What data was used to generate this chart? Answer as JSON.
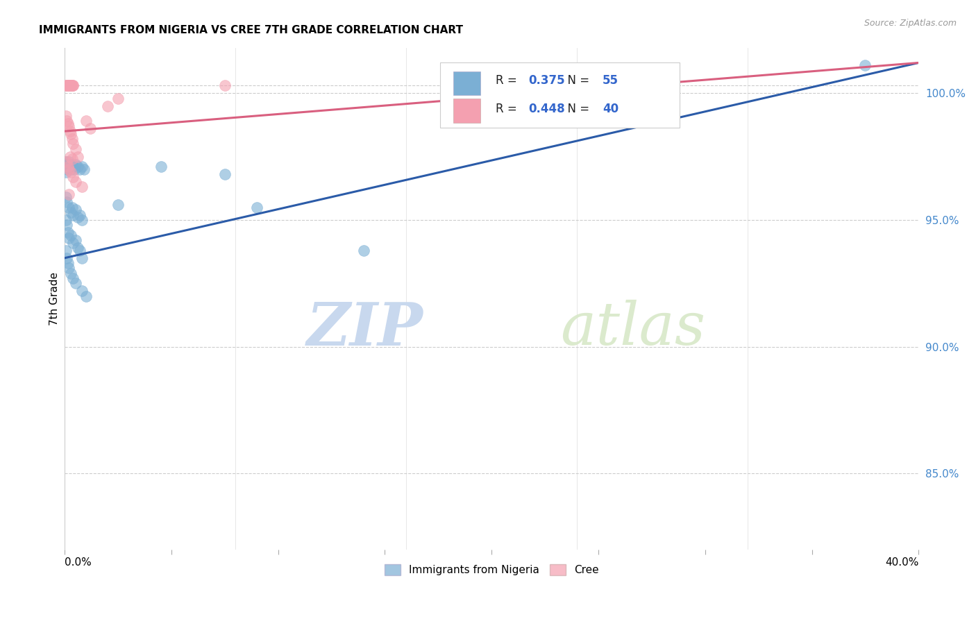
{
  "title": "IMMIGRANTS FROM NIGERIA VS CREE 7TH GRADE CORRELATION CHART",
  "source": "Source: ZipAtlas.com",
  "ylabel": "7th Grade",
  "xmin": 0.0,
  "xmax": 40.0,
  "ymin": 82.0,
  "ymax": 101.8,
  "yticks": [
    85.0,
    90.0,
    95.0,
    100.0
  ],
  "ytick_labels": [
    "85.0%",
    "90.0%",
    "95.0%",
    "100.0%"
  ],
  "blue_color": "#7BAFD4",
  "pink_color": "#F4A0B0",
  "blue_line_color": "#2B5BA8",
  "pink_line_color": "#D95F7F",
  "blue_label": "Immigrants from Nigeria",
  "pink_label": "Cree",
  "blue_R": 0.375,
  "blue_N": 55,
  "pink_R": 0.448,
  "pink_N": 40,
  "watermark_zip": "ZIP",
  "watermark_atlas": "atlas",
  "blue_trend_x": [
    0.0,
    40.0
  ],
  "blue_trend_y": [
    93.5,
    101.2
  ],
  "pink_trend_x": [
    0.0,
    40.0
  ],
  "pink_trend_y": [
    98.5,
    101.2
  ],
  "blue_scatter": [
    [
      0.05,
      97.3
    ],
    [
      0.08,
      97.2
    ],
    [
      0.1,
      97.1
    ],
    [
      0.12,
      97.0
    ],
    [
      0.05,
      96.9
    ],
    [
      0.15,
      97.2
    ],
    [
      0.18,
      97.1
    ],
    [
      0.2,
      97.3
    ],
    [
      0.22,
      97.2
    ],
    [
      0.25,
      97.1
    ],
    [
      0.28,
      97.0
    ],
    [
      0.3,
      97.1
    ],
    [
      0.35,
      97.2
    ],
    [
      0.4,
      97.1
    ],
    [
      0.45,
      97.0
    ],
    [
      0.5,
      97.2
    ],
    [
      0.6,
      97.1
    ],
    [
      0.7,
      97.0
    ],
    [
      0.8,
      97.1
    ],
    [
      0.9,
      97.0
    ],
    [
      0.05,
      95.9
    ],
    [
      0.1,
      95.7
    ],
    [
      0.2,
      95.5
    ],
    [
      0.3,
      95.3
    ],
    [
      0.35,
      95.5
    ],
    [
      0.4,
      95.2
    ],
    [
      0.5,
      95.4
    ],
    [
      0.6,
      95.1
    ],
    [
      0.7,
      95.2
    ],
    [
      0.8,
      95.0
    ],
    [
      0.05,
      95.0
    ],
    [
      0.1,
      94.8
    ],
    [
      0.15,
      94.5
    ],
    [
      0.2,
      94.3
    ],
    [
      0.3,
      94.4
    ],
    [
      0.4,
      94.1
    ],
    [
      0.5,
      94.2
    ],
    [
      0.6,
      93.9
    ],
    [
      0.7,
      93.8
    ],
    [
      0.8,
      93.5
    ],
    [
      0.05,
      93.8
    ],
    [
      0.1,
      93.5
    ],
    [
      0.15,
      93.3
    ],
    [
      0.2,
      93.1
    ],
    [
      0.3,
      92.9
    ],
    [
      0.4,
      92.7
    ],
    [
      0.5,
      92.5
    ],
    [
      0.8,
      92.2
    ],
    [
      1.0,
      92.0
    ],
    [
      2.5,
      95.6
    ],
    [
      4.5,
      97.1
    ],
    [
      7.5,
      96.8
    ],
    [
      9.0,
      95.5
    ],
    [
      14.0,
      93.8
    ],
    [
      37.5,
      101.1
    ]
  ],
  "pink_scatter": [
    [
      0.05,
      100.3
    ],
    [
      0.08,
      100.3
    ],
    [
      0.1,
      100.3
    ],
    [
      0.12,
      100.3
    ],
    [
      0.15,
      100.3
    ],
    [
      0.18,
      100.3
    ],
    [
      0.2,
      100.3
    ],
    [
      0.22,
      100.3
    ],
    [
      0.25,
      100.3
    ],
    [
      0.28,
      100.3
    ],
    [
      0.3,
      100.3
    ],
    [
      0.32,
      100.3
    ],
    [
      0.35,
      100.3
    ],
    [
      0.38,
      100.3
    ],
    [
      0.4,
      100.3
    ],
    [
      0.05,
      99.1
    ],
    [
      0.1,
      98.9
    ],
    [
      0.15,
      98.8
    ],
    [
      0.2,
      98.7
    ],
    [
      0.25,
      98.5
    ],
    [
      0.3,
      98.4
    ],
    [
      0.35,
      98.2
    ],
    [
      0.4,
      98.0
    ],
    [
      0.5,
      97.8
    ],
    [
      0.6,
      97.5
    ],
    [
      0.1,
      97.3
    ],
    [
      0.15,
      97.1
    ],
    [
      0.2,
      97.0
    ],
    [
      0.3,
      96.9
    ],
    [
      0.4,
      96.7
    ],
    [
      0.5,
      96.5
    ],
    [
      0.8,
      96.3
    ],
    [
      0.2,
      96.0
    ],
    [
      1.0,
      98.9
    ],
    [
      1.2,
      98.6
    ],
    [
      2.0,
      99.5
    ],
    [
      2.5,
      99.8
    ],
    [
      0.25,
      97.5
    ],
    [
      0.35,
      97.4
    ],
    [
      7.5,
      100.3
    ]
  ]
}
